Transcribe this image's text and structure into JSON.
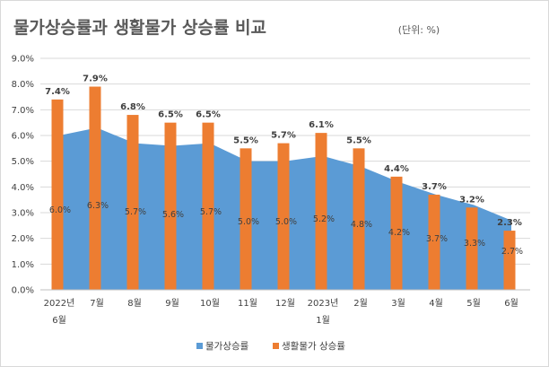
{
  "chart_data": {
    "type": "bar",
    "title": "물가상승률과 생활물가 상승률 비교",
    "unit_note": "(단위: %)",
    "categories": [
      [
        "2022년",
        "6월"
      ],
      [
        "7월"
      ],
      [
        "8월"
      ],
      [
        "9월"
      ],
      [
        "10월"
      ],
      [
        "11월"
      ],
      [
        "12월"
      ],
      [
        "2023년",
        "1월"
      ],
      [
        "2월"
      ],
      [
        "3월"
      ],
      [
        "4월"
      ],
      [
        "5월"
      ],
      [
        "6월"
      ]
    ],
    "y_ticks": [
      "0.0%",
      "1.0%",
      "2.0%",
      "3.0%",
      "4.0%",
      "5.0%",
      "6.0%",
      "7.0%",
      "8.0%",
      "9.0%"
    ],
    "ylim": [
      0,
      9
    ],
    "series": [
      {
        "name": "물가상승률",
        "type": "area",
        "color": "#5b9bd5",
        "values": [
          6.0,
          6.3,
          5.7,
          5.6,
          5.7,
          5.0,
          5.0,
          5.2,
          4.8,
          4.2,
          3.7,
          3.3,
          2.7
        ],
        "labels": [
          "6.0%",
          "6.3%",
          "5.7%",
          "5.6%",
          "5.7%",
          "5.0%",
          "5.0%",
          "5.2%",
          "4.8%",
          "4.2%",
          "3.7%",
          "3.3%",
          "2.7%"
        ]
      },
      {
        "name": "생활물가 상승률",
        "type": "bar",
        "color": "#ed7d31",
        "values": [
          7.4,
          7.9,
          6.8,
          6.5,
          6.5,
          5.5,
          5.7,
          6.1,
          5.5,
          4.4,
          3.7,
          3.2,
          2.3
        ],
        "labels": [
          "7.4%",
          "7.9%",
          "6.8%",
          "6.5%",
          "6.5%",
          "5.5%",
          "5.7%",
          "6.1%",
          "5.5%",
          "4.4%",
          "3.7%",
          "3.2%",
          "2.3%"
        ]
      }
    ],
    "grid": true,
    "legend_position": "bottom"
  }
}
